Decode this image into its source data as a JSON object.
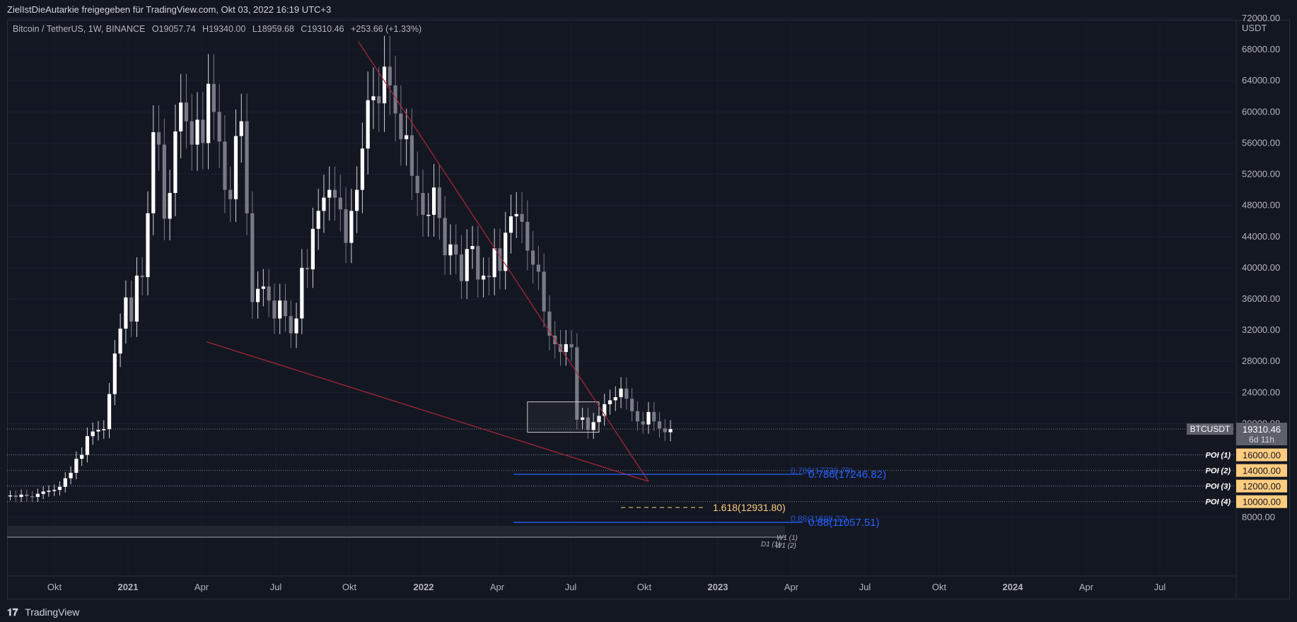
{
  "header": {
    "title": "ZielIstDieAutarkie freigegeben für TradingView.com, Okt 03, 2022 16:19 UTC+3"
  },
  "footer": {
    "brand": "TradingView"
  },
  "legend": {
    "symbol": "Bitcoin / TetherUS, 1W, BINANCE",
    "open": "O19057.74",
    "high": "H19340.00",
    "low": "L18959.68",
    "close": "C19310.46",
    "change": "+253.66 (+1.33%)"
  },
  "price_label": {
    "symbol": "BTCUSDT",
    "price": "19310.46",
    "countdown": "6d 11h"
  },
  "colors": {
    "background": "#131722",
    "up": "#ffffff",
    "down": "#787b86",
    "trend": "#b2263a",
    "fib": "#2962ff",
    "poi": "#ffcc80",
    "fib_ext": "#ffcc80"
  },
  "chart_data": {
    "type": "candlestick",
    "title": "Bitcoin / TetherUS, 1W, BINANCE",
    "ylabel": "USDT",
    "y_ticks": [
      "8000.00",
      "12000.00",
      "16000.00",
      "20000.00",
      "24000.00",
      "28000.00",
      "32000.00",
      "36000.00",
      "40000.00",
      "44000.00",
      "48000.00",
      "52000.00",
      "56000.00",
      "60000.00",
      "64000.00",
      "68000.00",
      "72000.00"
    ],
    "ylim": [
      6000,
      75000
    ],
    "x_ticks": [
      "Okt",
      "2021",
      "Apr",
      "Jul",
      "Okt",
      "2022",
      "Apr",
      "Jul",
      "Okt",
      "2023",
      "Apr",
      "Jul",
      "Okt",
      "2024",
      "Apr",
      "Jul"
    ],
    "close_series_weekly": [
      10800,
      10600,
      10900,
      10700,
      10600,
      11000,
      11300,
      11400,
      11500,
      11900,
      13000,
      13700,
      15500,
      16000,
      18400,
      19000,
      19200,
      19300,
      23800,
      29000,
      32200,
      36200,
      33100,
      39000,
      38800,
      47000,
      57400,
      55800,
      46300,
      49600,
      57500,
      61200,
      58800,
      55800,
      59000,
      56000,
      63600,
      60000,
      56200,
      50000,
      48800,
      56900,
      58800,
      47000,
      35600,
      37300,
      37600,
      35800,
      33500,
      35800,
      33800,
      31600,
      33500,
      40000,
      39800,
      45000,
      47300,
      49000,
      50000,
      49000,
      47500,
      43200,
      47300,
      50000,
      55300,
      61500,
      62000,
      61100,
      65800,
      63400,
      59800,
      56500,
      57000,
      51800,
      49600,
      46800,
      46800,
      50300,
      46400,
      41600,
      43000,
      41700,
      38300,
      42400,
      42800,
      38500,
      39000,
      38800,
      42500,
      39600,
      44500,
      46600,
      46900,
      45900,
      42200,
      40400,
      39500,
      34400,
      31300,
      30200,
      29200,
      30200,
      29800,
      20500,
      20800,
      19200,
      20200,
      21000,
      22500,
      23000,
      23400,
      24500,
      23200,
      21600,
      20300,
      19900,
      21500,
      20300,
      19400,
      18900,
      19300
    ],
    "trendlines": [
      {
        "from_date": "2021-11-10",
        "from_price": 69000,
        "to_date": "2022-11-14",
        "to_price": 12600
      },
      {
        "from_date": "2021-05-01",
        "from_price": 30500,
        "to_date": "2022-11-14",
        "to_price": 12600
      }
    ],
    "range_box": {
      "from_date": "2022-06-13",
      "to_date": "2022-09-12",
      "top": 22800,
      "bottom": 18900
    },
    "fib_levels": [
      {
        "label": "0.786(17738.79)"
      },
      {
        "label": "0.786(17246.82)"
      },
      {
        "label": "1.618(12931.80)"
      },
      {
        "label": "0.88(11608.22)"
      },
      {
        "label": "0.88(11057.51)"
      }
    ],
    "poi_levels": [
      {
        "name": "POI (1)",
        "value": "16000.00"
      },
      {
        "name": "POI (2)",
        "value": "14000.00"
      },
      {
        "name": "POI (3)",
        "value": "12000.00"
      },
      {
        "name": "POI (4)",
        "value": "10000.00"
      }
    ],
    "small_labels": [
      "W1 (1)",
      "D1 (1)",
      "W1 (2)"
    ]
  }
}
